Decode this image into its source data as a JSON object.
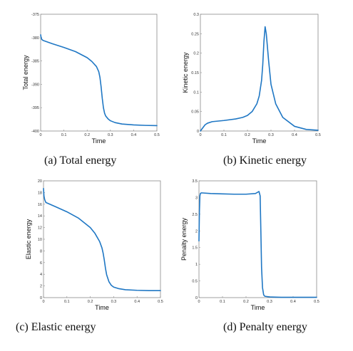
{
  "chart_data": [
    {
      "type": "line",
      "caption": "(a)  Total energy",
      "xlabel": "Time",
      "ylabel": "Total energy",
      "xlim": [
        0,
        0.5
      ],
      "ylim": [
        -400,
        -375
      ],
      "xticks": [
        "0",
        "0.1",
        "0.2",
        "0.3",
        "0.4",
        "0.5"
      ],
      "yticks": [
        "-400",
        "-395",
        "-390",
        "-385",
        "-380",
        "-375"
      ],
      "xtick_values": [
        0,
        0.1,
        0.2,
        0.3,
        0.4,
        0.5
      ],
      "ytick_values": [
        -400,
        -395,
        -390,
        -385,
        -380,
        -375
      ],
      "grid": false,
      "series": [
        {
          "x": [
            0,
            0.002,
            0.005,
            0.01,
            0.05,
            0.1,
            0.15,
            0.2,
            0.22,
            0.24,
            0.25,
            0.255,
            0.26,
            0.265,
            0.27,
            0.275,
            0.28,
            0.29,
            0.3,
            0.32,
            0.35,
            0.4,
            0.45,
            0.5
          ],
          "y": [
            -379.4,
            -380.0,
            -380.4,
            -380.6,
            -381.3,
            -382.1,
            -383.0,
            -384.3,
            -385.1,
            -386.2,
            -387.3,
            -388.5,
            -390.5,
            -393.0,
            -395.0,
            -396.2,
            -396.8,
            -397.4,
            -397.8,
            -398.2,
            -398.5,
            -398.7,
            -398.8,
            -398.85
          ]
        }
      ]
    },
    {
      "type": "line",
      "caption": "(b)  Kinetic energy",
      "xlabel": "Time",
      "ylabel": "Kinetic energy",
      "xlim": [
        0,
        0.5
      ],
      "ylim": [
        0,
        0.3
      ],
      "xticks": [
        "0",
        "0.1",
        "0.2",
        "0.3",
        "0.4",
        "0.5"
      ],
      "yticks": [
        "0",
        "0.05",
        "0.1",
        "0.15",
        "0.2",
        "0.25",
        "0.3"
      ],
      "xtick_values": [
        0,
        0.1,
        0.2,
        0.3,
        0.4,
        0.5
      ],
      "ytick_values": [
        0,
        0.05,
        0.1,
        0.15,
        0.2,
        0.25,
        0.3
      ],
      "grid": false,
      "series": [
        {
          "x": [
            0,
            0.01,
            0.02,
            0.03,
            0.05,
            0.1,
            0.15,
            0.18,
            0.2,
            0.22,
            0.24,
            0.25,
            0.26,
            0.265,
            0.27,
            0.275,
            0.28,
            0.29,
            0.3,
            0.32,
            0.35,
            0.4,
            0.45,
            0.5
          ],
          "y": [
            0,
            0.008,
            0.016,
            0.02,
            0.024,
            0.027,
            0.031,
            0.035,
            0.04,
            0.05,
            0.07,
            0.09,
            0.13,
            0.17,
            0.23,
            0.268,
            0.25,
            0.18,
            0.12,
            0.07,
            0.035,
            0.012,
            0.004,
            0.002
          ]
        }
      ]
    },
    {
      "type": "line",
      "caption": "(c)  Elastic energy",
      "xlabel": "Time",
      "ylabel": "Elastic energy",
      "xlim": [
        0,
        0.5
      ],
      "ylim": [
        0,
        20
      ],
      "xticks": [
        "0",
        "0.1",
        "0.2",
        "0.3",
        "0.4",
        "0.5"
      ],
      "yticks": [
        "0",
        "2",
        "4",
        "6",
        "8",
        "10",
        "12",
        "14",
        "16",
        "18",
        "20"
      ],
      "xtick_values": [
        0,
        0.1,
        0.2,
        0.3,
        0.4,
        0.5
      ],
      "ytick_values": [
        0,
        2,
        4,
        6,
        8,
        10,
        12,
        14,
        16,
        18,
        20
      ],
      "grid": false,
      "series": [
        {
          "x": [
            0,
            0.002,
            0.005,
            0.01,
            0.05,
            0.1,
            0.15,
            0.2,
            0.22,
            0.24,
            0.25,
            0.255,
            0.26,
            0.265,
            0.27,
            0.28,
            0.29,
            0.3,
            0.32,
            0.35,
            0.4,
            0.45,
            0.5
          ],
          "y": [
            18.7,
            17.4,
            16.8,
            16.3,
            15.6,
            14.7,
            13.6,
            12.0,
            11.0,
            9.6,
            8.5,
            7.6,
            6.4,
            5.0,
            3.9,
            2.7,
            2.1,
            1.8,
            1.55,
            1.35,
            1.25,
            1.2,
            1.2
          ]
        }
      ]
    },
    {
      "type": "line",
      "caption": "(d)  Penalty energy",
      "xlabel": "Time",
      "ylabel": "Penalty energy",
      "xlim": [
        0,
        0.5
      ],
      "ylim": [
        0,
        3.5
      ],
      "xticks": [
        "0",
        "0.1",
        "0.2",
        "0.3",
        "0.4",
        "0.5"
      ],
      "yticks": [
        "0",
        "0.5",
        "1",
        "1.5",
        "2",
        "2.5",
        "3",
        "3.5"
      ],
      "xtick_values": [
        0,
        0.1,
        0.2,
        0.3,
        0.4,
        0.5
      ],
      "ytick_values": [
        0,
        0.5,
        1,
        1.5,
        2,
        2.5,
        3,
        3.5
      ],
      "grid": false,
      "series": [
        {
          "x": [
            0,
            0.002,
            0.004,
            0.006,
            0.01,
            0.05,
            0.1,
            0.15,
            0.2,
            0.24,
            0.25,
            0.255,
            0.26,
            0.263,
            0.266,
            0.27,
            0.275,
            0.28,
            0.3,
            0.35,
            0.4,
            0.45,
            0.5
          ],
          "y": [
            1.7,
            2.6,
            3.05,
            3.12,
            3.14,
            3.12,
            3.11,
            3.1,
            3.1,
            3.12,
            3.16,
            3.18,
            3.05,
            2.0,
            0.9,
            0.3,
            0.08,
            0.04,
            0.02,
            0.01,
            0.01,
            0.01,
            0.01
          ]
        }
      ]
    }
  ]
}
